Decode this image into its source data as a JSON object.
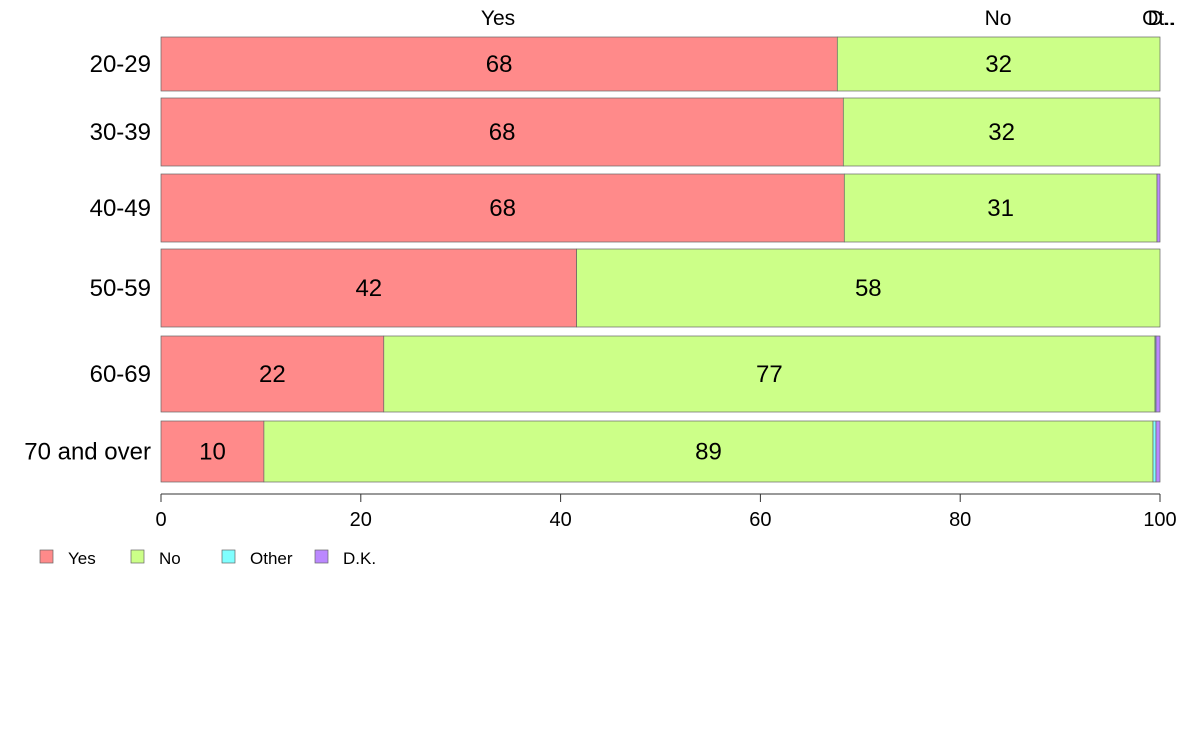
{
  "chart_data": {
    "type": "bar",
    "orientation": "horizontal",
    "stacked": true,
    "categories": [
      "20-29",
      "30-39",
      "40-49",
      "50-59",
      "60-69",
      "70 and over"
    ],
    "series": [
      {
        "name": "Yes",
        "color": "#ff8a8a",
        "values": [
          67.7,
          68.3,
          68.4,
          41.6,
          22.3,
          10.3
        ]
      },
      {
        "name": "No",
        "color": "#ccff88",
        "values": [
          32.3,
          31.7,
          31.3,
          58.4,
          77.2,
          89.0
        ]
      },
      {
        "name": "Other",
        "color": "#80ffff",
        "values": [
          0,
          0,
          0,
          0,
          0.1,
          0.3
        ]
      },
      {
        "name": "D.K.",
        "color": "#bb88ff",
        "values": [
          0,
          0,
          0.3,
          0,
          0.4,
          0.4
        ]
      }
    ],
    "data_labels": [
      [
        "68",
        "32",
        "",
        ""
      ],
      [
        "68",
        "32",
        "",
        ""
      ],
      [
        "68",
        "31",
        "",
        ""
      ],
      [
        "42",
        "58",
        "",
        ""
      ],
      [
        "22",
        "77",
        "",
        ""
      ],
      [
        "10",
        "89",
        "",
        ""
      ]
    ],
    "top_labels": [
      "Yes",
      "No",
      "Ot..",
      "D.."
    ],
    "x_ticks": [
      "0",
      "20",
      "40",
      "60",
      "80",
      "100"
    ],
    "xlim": [
      0,
      100
    ],
    "grid": false,
    "legend_position": "bottom-left",
    "legend": [
      "Yes",
      "No",
      "Other",
      "D.K."
    ],
    "title": "",
    "xlabel": "",
    "ylabel": ""
  }
}
